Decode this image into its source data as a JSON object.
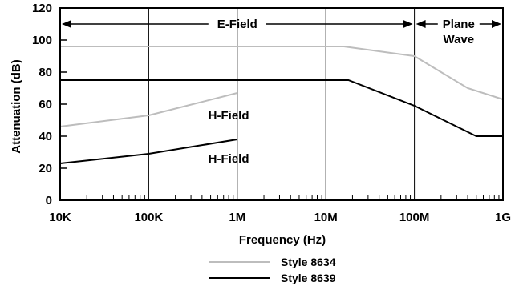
{
  "chart_data": {
    "type": "line",
    "title": "",
    "xlabel": "Frequency (Hz)",
    "ylabel": "Attenuation  (dB)",
    "xscale": "log",
    "xlim": [
      10000,
      1000000000
    ],
    "ylim": [
      0,
      120
    ],
    "x_tick_values": [
      10000,
      100000,
      1000000,
      10000000,
      100000000,
      1000000000
    ],
    "x_tick_labels": [
      "10K",
      "100K",
      "1M",
      "10M",
      "100M",
      "1G"
    ],
    "y_ticks": [
      0,
      20,
      40,
      60,
      80,
      100,
      120
    ],
    "grid": "vertical lines at decades",
    "legend_placement": "bottom-center",
    "series": [
      {
        "name": "Style 8634",
        "color": "#bdbdbd",
        "segments": [
          {
            "label": "E-Field",
            "points": [
              [
                10000,
                96
              ],
              [
                16000000,
                96
              ],
              [
                100000000,
                90
              ],
              [
                400000000,
                70
              ],
              [
                1000000000,
                63
              ]
            ]
          },
          {
            "label": "H-Field",
            "points": [
              [
                10000,
                46
              ],
              [
                100000,
                53
              ],
              [
                1000000,
                67
              ]
            ]
          }
        ]
      },
      {
        "name": "Style 8639",
        "color": "#000000",
        "segments": [
          {
            "label": "E-Field",
            "points": [
              [
                10000,
                75
              ],
              [
                18000000,
                75
              ],
              [
                100000000,
                59
              ],
              [
                500000000,
                40
              ],
              [
                1000000000,
                40
              ]
            ]
          },
          {
            "label": "H-Field",
            "points": [
              [
                10000,
                23
              ],
              [
                100000,
                29
              ],
              [
                1000000,
                38
              ]
            ]
          }
        ]
      }
    ],
    "annotations": [
      {
        "text": "E-Field",
        "type": "double-arrow",
        "x_from": 10000,
        "x_to": 100000000,
        "y": 110
      },
      {
        "text": "Plane Wave",
        "type": "double-arrow",
        "x_from": 100000000,
        "x_to": 1000000000,
        "y": 110
      },
      {
        "text": "H-Field",
        "x": 800000,
        "y": 53
      },
      {
        "text": "H-Field",
        "x": 800000,
        "y": 26
      }
    ]
  }
}
